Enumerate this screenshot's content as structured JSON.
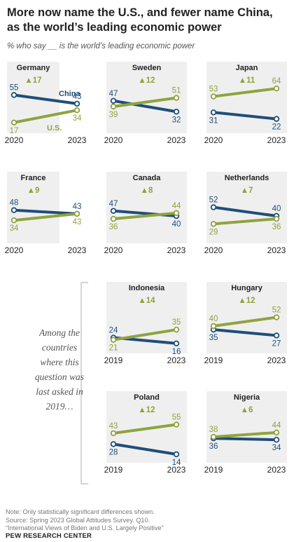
{
  "title": "More now name the U.S., and fewer name China, as the world’s leading economic power",
  "subtitle": "% who say __ is the world’s leading economic power",
  "side_note": "Among the countries where this question was last asked in 2019…",
  "note_lines": [
    "Note: Only statistically significant differences shown.",
    "Source: Spring 2023 Global Attitudes Survey. Q10.",
    "“International Views of Biden and U.S. Largely Positive”"
  ],
  "brand": "PEW RESEARCH CENTER",
  "colors": {
    "china": "#1f4e79",
    "us": "#8fa33f",
    "panel_bg": "#efefef"
  },
  "chart_data": {
    "type": "line",
    "series_labels": {
      "china": "China",
      "us": "U.S."
    },
    "panels": [
      {
        "country": "Germany",
        "change": "▲17",
        "x": [
          "2020",
          "2023"
        ],
        "china": [
          55,
          43
        ],
        "us": [
          17,
          34
        ]
      },
      {
        "country": "Sweden",
        "change": "▲12",
        "x": [
          "2020",
          "2023"
        ],
        "china": [
          47,
          32
        ],
        "us": [
          39,
          51
        ]
      },
      {
        "country": "Japan",
        "change": "▲11",
        "x": [
          "2020",
          "2023"
        ],
        "china": [
          31,
          22
        ],
        "us": [
          53,
          64
        ]
      },
      {
        "country": "France",
        "change": "▲9",
        "x": [
          "2020",
          "2023"
        ],
        "china": [
          48,
          43
        ],
        "us": [
          34,
          43
        ]
      },
      {
        "country": "Canada",
        "change": "▲8",
        "x": [
          "2020",
          "2023"
        ],
        "china": [
          47,
          40
        ],
        "us": [
          36,
          44
        ]
      },
      {
        "country": "Netherlands",
        "change": "▲7",
        "x": [
          "2020",
          "2023"
        ],
        "china": [
          52,
          40
        ],
        "us": [
          29,
          36
        ]
      },
      {
        "country": "Indonesia",
        "change": "▲14",
        "x": [
          "2019",
          "2023"
        ],
        "china": [
          24,
          16
        ],
        "us": [
          21,
          35
        ]
      },
      {
        "country": "Hungary",
        "change": "▲12",
        "x": [
          "2019",
          "2023"
        ],
        "china": [
          35,
          27
        ],
        "us": [
          40,
          52
        ]
      },
      {
        "country": "Poland",
        "change": "▲12",
        "x": [
          "2019",
          "2023"
        ],
        "china": [
          28,
          14
        ],
        "us": [
          43,
          55
        ]
      },
      {
        "country": "Nigeria",
        "change": "▲6",
        "x": [
          "2019",
          "2023"
        ],
        "china": [
          36,
          34
        ],
        "us": [
          38,
          44
        ]
      }
    ]
  }
}
